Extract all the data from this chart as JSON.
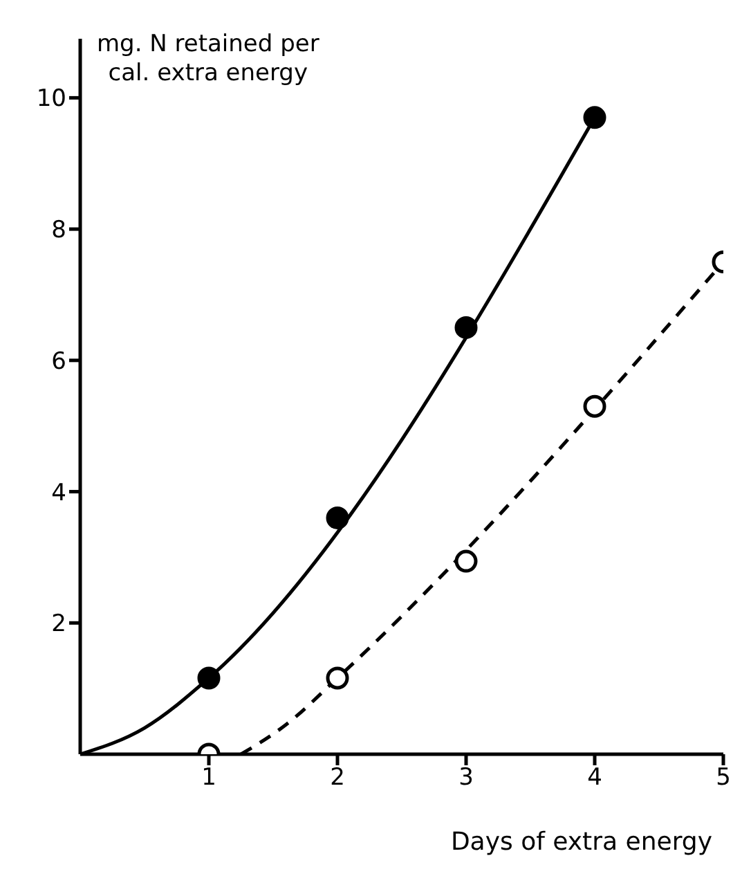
{
  "chart_data": {
    "type": "scatter",
    "xlabel": "Days of extra energy",
    "ylabel": "mg. N retained per\ncal. extra energy",
    "xlim": [
      0,
      5
    ],
    "ylim": [
      0,
      10.9
    ],
    "xticks": [
      1,
      2,
      3,
      4,
      5
    ],
    "yticks": [
      2,
      4,
      6,
      8,
      10
    ],
    "grid": false,
    "series": [
      {
        "type": "line",
        "x": [
          0,
          0.5,
          1,
          4
        ],
        "values": [
          0,
          0.4,
          1.16,
          9.7
        ],
        "color": "#000000",
        "line_style": "solid",
        "marker": "none"
      },
      {
        "type": "line",
        "x": [
          1.25,
          1.6,
          2,
          5
        ],
        "values": [
          0,
          0.45,
          1.16,
          7.5
        ],
        "color": "#000000",
        "line_style": "dashed",
        "marker": "none"
      },
      {
        "x": [
          1,
          2,
          3,
          4
        ],
        "values": [
          1.16,
          3.6,
          6.5,
          9.7
        ],
        "color": "#000000",
        "marker": "circle"
      },
      {
        "x": [
          1,
          2,
          3,
          4,
          5
        ],
        "values": [
          0,
          1.16,
          2.94,
          5.3,
          7.5
        ],
        "color": "#ffffff",
        "marker": "circle"
      }
    ]
  }
}
